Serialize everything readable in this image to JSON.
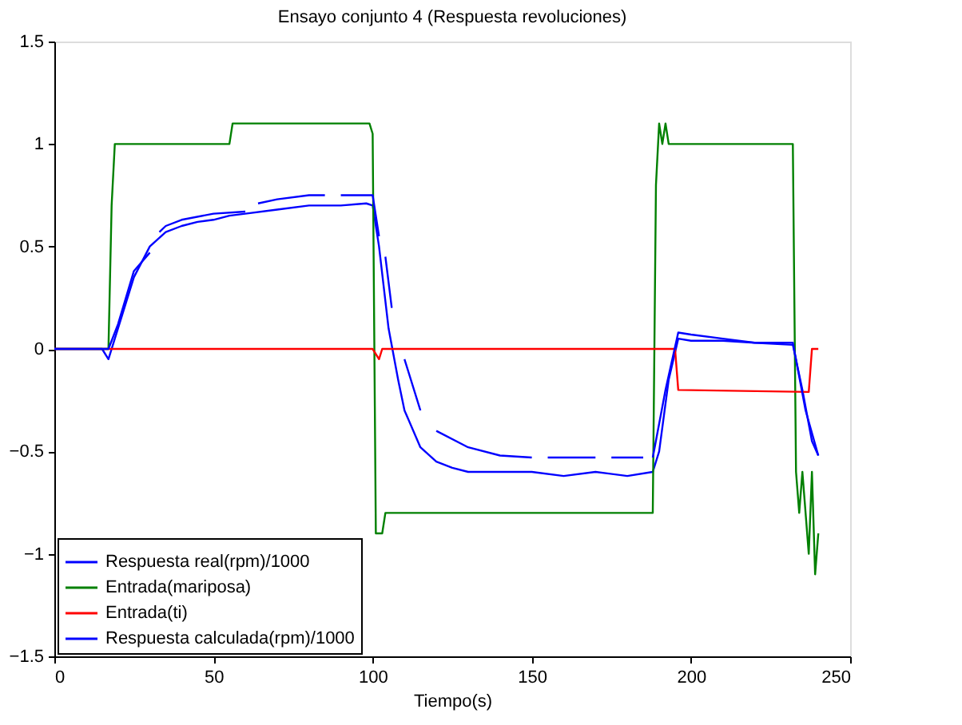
{
  "chart_data": {
    "type": "line",
    "title": "Ensayo conjunto 4 (Respuesta revoluciones)",
    "xlabel": "Tiempo(s)",
    "xlim": [
      0,
      250
    ],
    "xticks": [
      0,
      50,
      100,
      150,
      200,
      250
    ],
    "ylim": [
      -1.5,
      1.5
    ],
    "yticks": [
      -1.5,
      -1,
      -0.5,
      0,
      0.5,
      1,
      1.5
    ],
    "grid": false,
    "legend": "bottom left",
    "series": [
      {
        "name": "Respuesta real(rpm)/1000",
        "color": "#0000ff",
        "line_style": "solid",
        "x": [
          0,
          10,
          15,
          17,
          18,
          20,
          25,
          30,
          35,
          40,
          45,
          50,
          55,
          60,
          70,
          80,
          90,
          98,
          100,
          102,
          105,
          108,
          110,
          115,
          120,
          125,
          130,
          140,
          150,
          160,
          170,
          180,
          188,
          190,
          193,
          196,
          200,
          210,
          220,
          232,
          235,
          238,
          240
        ],
        "values": [
          0,
          0,
          0,
          -0.05,
          0,
          0.1,
          0.35,
          0.5,
          0.57,
          0.6,
          0.62,
          0.63,
          0.65,
          0.66,
          0.68,
          0.7,
          0.7,
          0.71,
          0.7,
          0.5,
          0.1,
          -0.15,
          -0.3,
          -0.48,
          -0.55,
          -0.58,
          -0.6,
          -0.6,
          -0.6,
          -0.62,
          -0.6,
          -0.62,
          -0.6,
          -0.5,
          -0.15,
          0.05,
          0.04,
          0.04,
          0.03,
          0.02,
          -0.2,
          -0.45,
          -0.52
        ]
      },
      {
        "name": "Entrada(mariposa)",
        "color": "#008000",
        "line_style": "solid",
        "x": [
          0,
          17,
          18,
          19,
          55,
          56,
          99,
          100,
          101,
          103,
          104,
          188,
          189,
          190,
          191,
          192,
          193,
          232,
          233,
          234,
          235,
          237,
          238,
          239,
          240
        ],
        "values": [
          0,
          0,
          0.7,
          1,
          1,
          1.1,
          1.1,
          1.05,
          -0.9,
          -0.9,
          -0.8,
          -0.8,
          0.8,
          1.1,
          1,
          1.1,
          1,
          1,
          -0.6,
          -0.8,
          -0.6,
          -1,
          -0.6,
          -1.1,
          -0.9
        ]
      },
      {
        "name": "Entrada(ti)",
        "color": "#ff0000",
        "line_style": "solid",
        "x": [
          0,
          100,
          102,
          103,
          195,
          196,
          237,
          238,
          240
        ],
        "values": [
          0,
          0,
          -0.05,
          0,
          0,
          -0.2,
          -0.21,
          0,
          0
        ]
      },
      {
        "name": "Respuesta calculada(rpm)/1000",
        "color": "#0000ff",
        "line_style": "solid",
        "x": [
          0,
          17,
          20,
          25,
          30,
          32,
          33,
          35,
          40,
          50,
          60,
          62,
          64,
          70,
          80,
          85,
          88,
          90,
          100,
          102,
          103,
          104,
          106,
          108,
          110,
          115,
          116,
          120,
          130,
          140,
          150,
          152,
          155,
          170,
          172,
          175,
          185,
          187,
          188,
          192,
          196,
          200,
          210,
          220,
          232,
          236,
          240
        ],
        "values": [
          0,
          0,
          0.12,
          0.38,
          0.47,
          null,
          0.57,
          0.6,
          0.63,
          0.66,
          0.67,
          null,
          0.71,
          0.73,
          0.75,
          0.75,
          null,
          0.75,
          0.75,
          0.55,
          null,
          0.45,
          0.2,
          null,
          -0.05,
          -0.3,
          null,
          -0.4,
          -0.48,
          -0.52,
          -0.53,
          null,
          -0.53,
          -0.53,
          null,
          -0.53,
          -0.53,
          null,
          -0.53,
          -0.2,
          0.08,
          0.07,
          0.05,
          0.03,
          0.03,
          -0.3,
          -0.52
        ]
      }
    ]
  }
}
